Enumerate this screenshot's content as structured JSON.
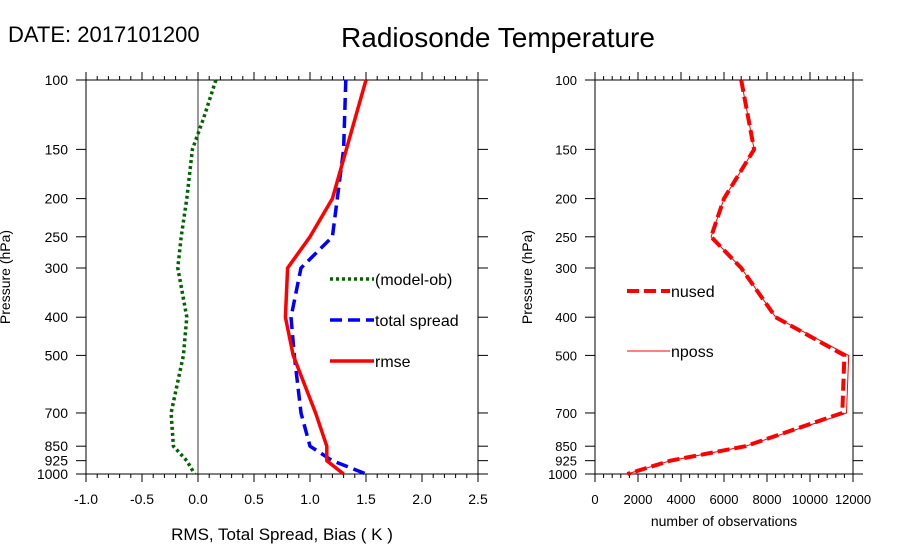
{
  "header": {
    "date_label": "DATE: 2017101200",
    "title": "Radiosonde Temperature"
  },
  "chart_data": [
    {
      "type": "line",
      "xlabel": "RMS, Total Spread, Bias ( K )",
      "ylabel": "Pressure (hPa)",
      "xlim": [
        -1.0,
        2.5
      ],
      "xticks": [
        "-1.0",
        "-0.5",
        "0.0",
        "0.5",
        "1.0",
        "1.5",
        "2.0",
        "2.5"
      ],
      "y_scale": "log",
      "ylim": [
        1000,
        100
      ],
      "yticks": [
        100,
        150,
        200,
        250,
        300,
        400,
        500,
        700,
        850,
        925,
        1000
      ],
      "zero_line": true,
      "series": [
        {
          "name": "(model-ob)",
          "color": "#006400",
          "style": "dotted",
          "points": [
            [
              0.16,
              100
            ],
            [
              0.05,
              125
            ],
            [
              -0.05,
              150
            ],
            [
              -0.1,
              200
            ],
            [
              -0.15,
              250
            ],
            [
              -0.18,
              300
            ],
            [
              -0.1,
              400
            ],
            [
              -0.13,
              500
            ],
            [
              -0.24,
              700
            ],
            [
              -0.22,
              850
            ],
            [
              -0.1,
              925
            ],
            [
              -0.03,
              1000
            ]
          ]
        },
        {
          "name": "total spread",
          "color": "#0000ff",
          "style": "dashed",
          "points": [
            [
              1.32,
              100
            ],
            [
              1.3,
              150
            ],
            [
              1.2,
              250
            ],
            [
              0.92,
              300
            ],
            [
              0.83,
              400
            ],
            [
              0.86,
              500
            ],
            [
              0.92,
              700
            ],
            [
              1.0,
              850
            ],
            [
              1.2,
              925
            ],
            [
              1.5,
              1000
            ]
          ]
        },
        {
          "name": "rmse",
          "color": "#ff0000",
          "style": "solid",
          "points": [
            [
              1.5,
              100
            ],
            [
              1.2,
              200
            ],
            [
              1.0,
              250
            ],
            [
              0.8,
              300
            ],
            [
              0.78,
              400
            ],
            [
              0.85,
              500
            ],
            [
              1.05,
              700
            ],
            [
              1.15,
              850
            ],
            [
              1.15,
              925
            ],
            [
              1.3,
              1000
            ]
          ]
        }
      ]
    },
    {
      "type": "line",
      "xlabel": "number of observations",
      "ylabel": "Pressure (hPa)",
      "xlim": [
        0,
        12000
      ],
      "xticks": [
        "0",
        "2000",
        "4000",
        "6000",
        "8000",
        "10000",
        "12000"
      ],
      "y_scale": "log",
      "ylim": [
        1000,
        100
      ],
      "yticks": [
        100,
        150,
        200,
        250,
        300,
        400,
        500,
        700,
        850,
        925,
        1000
      ],
      "series": [
        {
          "name": "nused",
          "color": "#ff0000",
          "style": "dashed-thick",
          "points": [
            [
              6800,
              100
            ],
            [
              7400,
              150
            ],
            [
              6000,
              200
            ],
            [
              5400,
              250
            ],
            [
              6800,
              300
            ],
            [
              8400,
              400
            ],
            [
              11600,
              500
            ],
            [
              11500,
              700
            ],
            [
              7000,
              850
            ],
            [
              3500,
              925
            ],
            [
              1500,
              1000
            ]
          ]
        },
        {
          "name": "nposs",
          "color": "#ff0000",
          "style": "thin",
          "points": [
            [
              6800,
              100
            ],
            [
              7400,
              150
            ],
            [
              6000,
              200
            ],
            [
              5400,
              250
            ],
            [
              6800,
              300
            ],
            [
              8400,
              400
            ],
            [
              11800,
              500
            ],
            [
              11700,
              700
            ],
            [
              7000,
              850
            ],
            [
              3500,
              925
            ],
            [
              1500,
              1000
            ]
          ]
        }
      ]
    }
  ]
}
